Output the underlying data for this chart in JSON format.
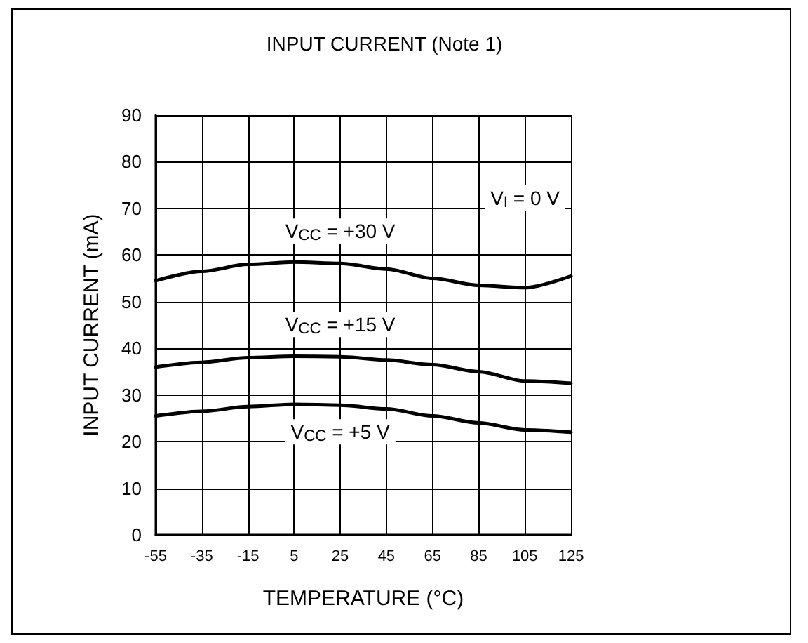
{
  "chart_data": {
    "type": "line",
    "title": "INPUT CURRENT (Note 1)",
    "xlabel": "TEMPERATURE (°C)",
    "ylabel": "INPUT CURRENT (mA)",
    "x": [
      -55,
      -35,
      -15,
      5,
      25,
      45,
      65,
      85,
      105,
      125
    ],
    "series": [
      {
        "name": "V$_{CC}$ = +30 V",
        "color": "#000000",
        "values": [
          54.5,
          56.5,
          58,
          58.5,
          58.2,
          57,
          55,
          53.5,
          53,
          55.5
        ]
      },
      {
        "name": "V$_{CC}$ = +15 V",
        "color": "#000000",
        "values": [
          36,
          37,
          38,
          38.3,
          38.2,
          37.5,
          36.5,
          35,
          33,
          32.5
        ]
      },
      {
        "name": "V$_{CC}$ = +5 V",
        "color": "#000000",
        "values": [
          25.5,
          26.5,
          27.5,
          28,
          27.8,
          27,
          25.5,
          24,
          22.5,
          22
        ]
      }
    ],
    "annotations": [
      "V$_{I}$ = 0 V"
    ],
    "xlim": [
      -55,
      125
    ],
    "xticks": [
      -55,
      -35,
      -15,
      5,
      25,
      45,
      65,
      85,
      105,
      125
    ],
    "ylim": [
      0,
      90
    ],
    "yticks": [
      0,
      10,
      20,
      30,
      40,
      50,
      60,
      70,
      80,
      90
    ],
    "grid": true,
    "legend": false,
    "marker": "none",
    "line_style": "solid"
  }
}
